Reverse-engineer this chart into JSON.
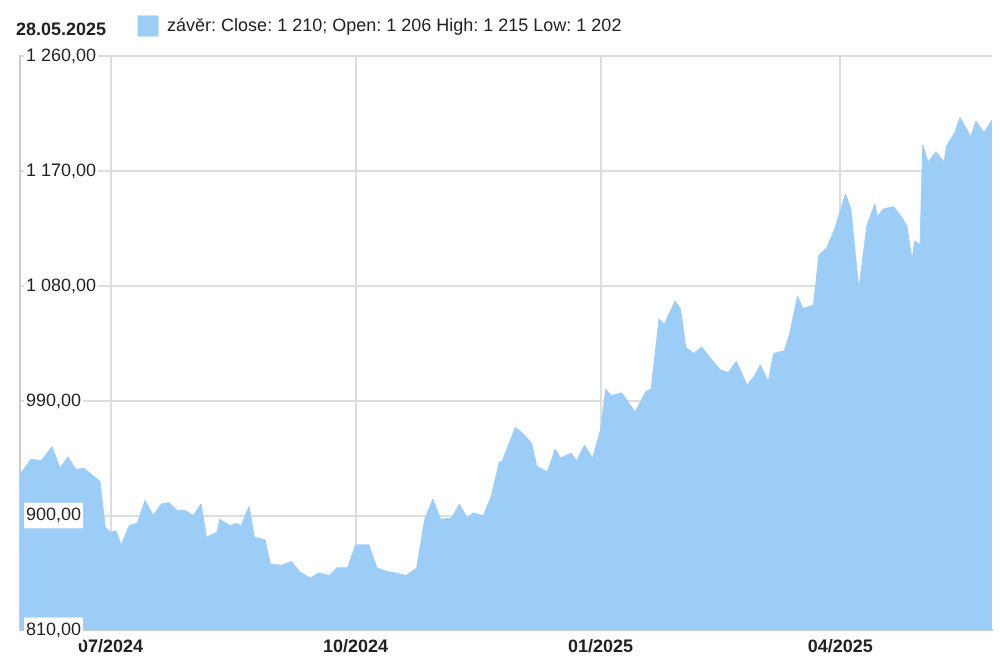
{
  "chart_data": {
    "type": "area",
    "x": [
      "2024-05-28",
      "2024-06-01",
      "2024-06-05",
      "2024-06-09",
      "2024-06-12",
      "2024-06-15",
      "2024-06-18",
      "2024-06-21",
      "2024-06-24",
      "2024-06-27",
      "2024-06-29",
      "2024-07-01",
      "2024-07-03",
      "2024-07-05",
      "2024-07-08",
      "2024-07-11",
      "2024-07-14",
      "2024-07-17",
      "2024-07-20",
      "2024-07-23",
      "2024-07-26",
      "2024-07-29",
      "2024-08-01",
      "2024-08-04",
      "2024-08-06",
      "2024-08-10",
      "2024-08-11",
      "2024-08-15",
      "2024-08-17",
      "2024-08-19",
      "2024-08-22",
      "2024-08-24",
      "2024-08-28",
      "2024-08-30",
      "2024-09-03",
      "2024-09-07",
      "2024-09-10",
      "2024-09-14",
      "2024-09-17",
      "2024-09-21",
      "2024-09-24",
      "2024-09-28",
      "2024-10-01",
      "2024-10-06",
      "2024-10-09",
      "2024-10-13",
      "2024-10-16",
      "2024-10-20",
      "2024-10-24",
      "2024-10-27",
      "2024-10-30",
      "2024-11-02",
      "2024-11-06",
      "2024-11-09",
      "2024-11-12",
      "2024-11-14",
      "2024-11-18",
      "2024-11-21",
      "2024-11-24",
      "2024-11-25",
      "2024-11-30",
      "2024-12-03",
      "2024-12-06",
      "2024-12-08",
      "2024-12-12",
      "2024-12-15",
      "2024-12-17",
      "2024-12-21",
      "2024-12-23",
      "2024-12-26",
      "2024-12-29",
      "2025-01-01",
      "2025-01-03",
      "2025-01-05",
      "2025-01-09",
      "2025-01-11",
      "2025-01-14",
      "2025-01-18",
      "2025-01-20",
      "2025-01-23",
      "2025-01-25",
      "2025-01-29",
      "2025-01-31",
      "2025-02-02",
      "2025-02-05",
      "2025-02-08",
      "2025-02-11",
      "2025-02-15",
      "2025-02-18",
      "2025-02-21",
      "2025-02-25",
      "2025-02-28",
      "2025-03-02",
      "2025-03-05",
      "2025-03-07",
      "2025-03-11",
      "2025-03-13",
      "2025-03-16",
      "2025-03-18",
      "2025-03-22",
      "2025-03-24",
      "2025-03-27",
      "2025-03-30",
      "2025-04-03",
      "2025-04-05",
      "2025-04-08",
      "2025-04-11",
      "2025-04-14",
      "2025-04-15",
      "2025-04-17",
      "2025-04-21",
      "2025-04-24",
      "2025-04-26",
      "2025-04-28",
      "2025-04-29",
      "2025-05-01",
      "2025-05-02",
      "2025-05-04",
      "2025-05-07",
      "2025-05-10",
      "2025-05-11",
      "2025-05-14",
      "2025-05-16",
      "2025-05-20",
      "2025-05-22",
      "2025-05-25",
      "2025-05-28"
    ],
    "series": [
      {
        "name": "závěr: Close: 1 210; Open: 1 206 High: 1 215 Low: 1 202",
        "color": "#9ccdf7",
        "values": [
          932,
          944,
          943,
          954,
          937,
          946,
          936,
          937,
          932,
          927,
          891,
          887,
          888,
          877,
          892,
          894,
          912,
          900,
          909,
          910,
          904,
          904,
          900,
          909,
          883,
          887,
          897,
          892,
          894,
          892,
          907,
          883,
          881,
          862,
          861,
          864,
          856,
          851,
          855,
          853,
          859,
          859,
          877,
          877,
          859,
          856,
          855,
          853,
          859,
          897,
          913,
          897,
          898,
          909,
          898,
          902,
          900,
          915,
          942,
          942,
          969,
          964,
          957,
          939,
          934,
          952,
          945,
          949,
          943,
          955,
          945,
          967,
          999,
          994,
          996,
          990,
          981,
          997,
          999,
          1054,
          1050,
          1068,
          1062,
          1032,
          1027,
          1032,
          1024,
          1014,
          1012,
          1021,
          1002,
          1010,
          1018,
          1005,
          1027,
          1029,
          1042,
          1072,
          1062,
          1065,
          1104,
          1110,
          1125,
          1152,
          1140,
          1077,
          1127,
          1144,
          1134,
          1140,
          1142,
          1134,
          1127,
          1100,
          1115,
          1112,
          1190,
          1177,
          1185,
          1177,
          1190,
          1200,
          1212,
          1197,
          1209,
          1200,
          1210
        ]
      }
    ],
    "xlim": [
      "2024-05-28",
      "2025-05-28"
    ],
    "xticks": [
      {
        "value": "2024-07-01",
        "label": "07/2024"
      },
      {
        "value": "2024-10-01",
        "label": "10/2024"
      },
      {
        "value": "2025-01-01",
        "label": "01/2025"
      },
      {
        "value": "2025-04-01",
        "label": "04/2025"
      }
    ],
    "ylim": [
      810,
      1260
    ],
    "yticks": [
      {
        "value": 810,
        "label": "810,00"
      },
      {
        "value": 900,
        "label": "900,00"
      },
      {
        "value": 990,
        "label": "990,00"
      },
      {
        "value": 1080,
        "label": "1 080,00"
      },
      {
        "value": 1170,
        "label": "1 170,00"
      },
      {
        "value": 1260,
        "label": "1 260,00"
      }
    ],
    "grid": true,
    "legend": "top left",
    "annotations": [
      "28.05.2025"
    ]
  }
}
